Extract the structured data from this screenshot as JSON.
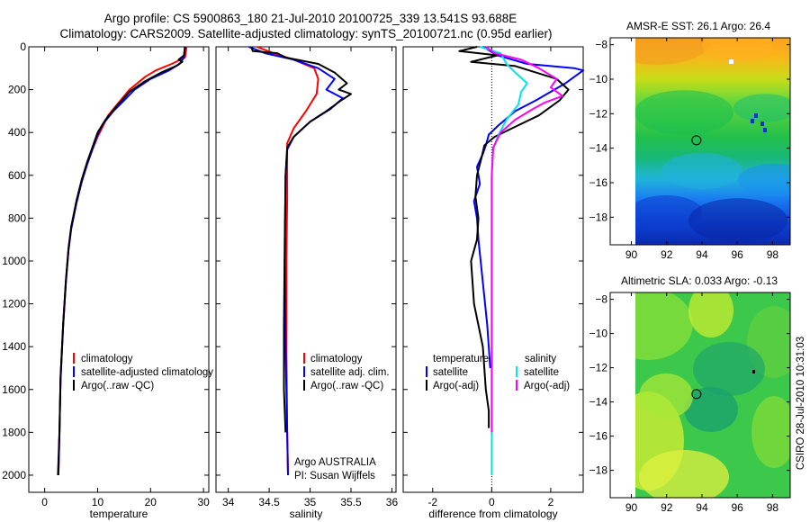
{
  "header": {
    "title_line1": "Argo profile: CS 5900863_180 21-Jul-2010 20100725_339 13.541S 93.688E",
    "title_line2": "Climatology: CARS2009. Satellite-adjusted climatology: synTS_20100721.nc (0.95d earlier)"
  },
  "credits": {
    "operator": "Argo AUSTRALIA",
    "pi": "PI: Susan Wijffels",
    "stamp": "CSIRO 28-Jul-2010 10:31:03"
  },
  "colors": {
    "climatology": "#ff0000",
    "satellite": "#0000ff",
    "argo": "#000000",
    "sal_satellite": "#00e5ee",
    "sal_argo": "#ff00ff"
  },
  "chart_data": [
    {
      "type": "line",
      "panel": "temperature",
      "xlabel": "temperature",
      "ylabel": "",
      "xlim": [
        -3,
        31
      ],
      "ylim": [
        0,
        2080
      ],
      "y_reversed": true,
      "xticks": [
        0,
        10,
        20,
        30
      ],
      "yticks": [
        0,
        200,
        400,
        600,
        800,
        1000,
        1200,
        1400,
        1600,
        1800,
        2000
      ],
      "legend": [
        "climatology",
        "satellite-adjusted climatology",
        "Argo(..raw -QC)"
      ],
      "series": [
        {
          "name": "climatology",
          "color": "#ff0000",
          "x": [
            26.8,
            26.5,
            24,
            21,
            19,
            16,
            14,
            12,
            11,
            10,
            9,
            8,
            7,
            6,
            5,
            4.5,
            4,
            3.5,
            3,
            2.8,
            2.6
          ],
          "y": [
            0,
            50,
            80,
            110,
            140,
            200,
            260,
            320,
            370,
            420,
            480,
            550,
            630,
            730,
            850,
            950,
            1100,
            1300,
            1550,
            1800,
            2000
          ]
        },
        {
          "name": "satellite-adjusted climatology",
          "color": "#0000ff",
          "x": [
            26.5,
            26.3,
            25.5,
            23.5,
            20,
            17,
            15,
            13,
            11,
            10,
            9,
            8,
            7,
            6,
            5,
            4.5,
            4,
            3.5,
            3,
            2.8,
            2.6
          ],
          "y": [
            0,
            50,
            80,
            110,
            150,
            200,
            250,
            300,
            360,
            410,
            480,
            550,
            630,
            730,
            850,
            950,
            1100,
            1300,
            1550,
            1800,
            2000
          ]
        },
        {
          "name": "Argo(..raw -QC)",
          "color": "#000000",
          "x": [
            26.5,
            26.3,
            25.3,
            26,
            24.8,
            22,
            19,
            16,
            13.5,
            11.5,
            10,
            9,
            8,
            7,
            6,
            5,
            4.5,
            4,
            3.5,
            3,
            2.8,
            2.5
          ],
          "y": [
            0,
            40,
            60,
            70,
            90,
            120,
            160,
            210,
            280,
            340,
            400,
            470,
            540,
            620,
            720,
            840,
            940,
            1090,
            1290,
            1540,
            1790,
            2000
          ]
        }
      ]
    },
    {
      "type": "line",
      "panel": "salinity",
      "xlabel": "salinity",
      "ylabel": "",
      "xlim": [
        33.85,
        36.05
      ],
      "ylim": [
        0,
        2080
      ],
      "y_reversed": true,
      "xticks": [
        34,
        34.5,
        35,
        35.5,
        36
      ],
      "legend": [
        "climatology",
        "satellite adj. clim.",
        "Argo(..raw -QC)"
      ],
      "series": [
        {
          "name": "climatology",
          "color": "#ff0000",
          "x": [
            34.35,
            34.55,
            34.8,
            35.05,
            35.1,
            35.08,
            34.95,
            34.8,
            34.72,
            34.72,
            34.72,
            34.71,
            34.71,
            34.72,
            34.73
          ],
          "y": [
            0,
            30,
            60,
            100,
            150,
            220,
            300,
            380,
            450,
            500,
            700,
            1000,
            1400,
            1800,
            2000
          ]
        },
        {
          "name": "satellite adj. clim.",
          "color": "#0000ff",
          "x": [
            34.25,
            34.45,
            34.8,
            35.1,
            35.3,
            35.2,
            35.4,
            35.25,
            35.0,
            34.8,
            34.72,
            34.7,
            34.69,
            34.7,
            34.72,
            34.73
          ],
          "y": [
            0,
            30,
            60,
            100,
            150,
            200,
            240,
            290,
            350,
            420,
            480,
            600,
            1000,
            1400,
            1800,
            2000
          ]
        },
        {
          "name": "Argo(..raw -QC)",
          "color": "#000000",
          "x": [
            34.28,
            34.3,
            34.6,
            34.7,
            35.1,
            35.3,
            35.45,
            35.35,
            35.5,
            35.38,
            35.2,
            35.0,
            34.8,
            34.72,
            34.7,
            34.69,
            34.68,
            34.68,
            34.7
          ],
          "y": [
            0,
            20,
            30,
            50,
            80,
            120,
            170,
            200,
            220,
            250,
            300,
            350,
            420,
            470,
            600,
            900,
            1300,
            1600,
            1800
          ]
        }
      ]
    },
    {
      "type": "line",
      "panel": "difference",
      "xlabel": "difference from climatology",
      "ylabel": "",
      "xlim": [
        -3,
        3.1
      ],
      "ylim": [
        0,
        2080
      ],
      "y_reversed": true,
      "xticks": [
        -2,
        0,
        2
      ],
      "legend_headers": [
        "temperature",
        "salinity"
      ],
      "legend": [
        "satellite",
        "Argo(-adj)",
        "satellite",
        "Argo(-adj)"
      ],
      "series": [
        {
          "name": "temperature satellite",
          "color": "#0000ff",
          "x": [
            -0.3,
            0.2,
            1.2,
            2.0,
            2.8,
            3.1,
            2.5,
            1.5,
            0.8,
            0.2,
            -0.1,
            -0.2,
            -0.3,
            -0.5,
            -0.4,
            -0.6,
            -0.5,
            -0.45,
            -0.3,
            -0.15,
            -0.05
          ],
          "y": [
            0,
            40,
            80,
            90,
            100,
            110,
            170,
            250,
            300,
            370,
            410,
            460,
            500,
            560,
            640,
            720,
            800,
            900,
            1100,
            1300,
            1500
          ]
        },
        {
          "name": "temperature Argo(-adj)",
          "color": "#000000",
          "x": [
            -0.5,
            -1.1,
            0.2,
            -0.7,
            0.8,
            1.5,
            2.2,
            2.6,
            2.3,
            1.6,
            0.7,
            0.1,
            -0.25,
            -0.35,
            -0.5,
            -0.55,
            -0.45,
            -0.5,
            -0.7,
            -0.6,
            -0.3,
            -0.2,
            -0.1,
            -0.1
          ],
          "y": [
            0,
            20,
            40,
            70,
            90,
            120,
            150,
            200,
            250,
            320,
            380,
            420,
            460,
            520,
            600,
            700,
            800,
            900,
            1000,
            1200,
            1400,
            1600,
            1700,
            1780
          ]
        },
        {
          "name": "salinity satellite",
          "color": "#00e5ee",
          "x": [
            -0.4,
            0.3,
            0.5,
            0.8,
            1.2,
            1.0,
            0.9,
            0.5,
            0.2,
            0.05,
            0.0,
            0.0
          ],
          "y": [
            0,
            30,
            80,
            120,
            170,
            210,
            270,
            340,
            420,
            480,
            600,
            2000
          ]
        },
        {
          "name": "salinity Argo(-adj)",
          "color": "#ff00ff",
          "x": [
            -0.2,
            0.1,
            1.0,
            1.6,
            2.2,
            2.0,
            2.4,
            1.8,
            1.4,
            0.8,
            0.3,
            0.05,
            0.0,
            0.0
          ],
          "y": [
            0,
            30,
            60,
            100,
            150,
            190,
            230,
            260,
            290,
            340,
            400,
            470,
            600,
            1800
          ]
        }
      ]
    },
    {
      "type": "heatmap",
      "panel": "sst_map",
      "title": "AMSR-E SST: 26.1 Argo: 26.4",
      "xlim": [
        88.8,
        99
      ],
      "ylim": [
        -19.6,
        -7.6
      ],
      "xticks": [
        90,
        92,
        94,
        96,
        98
      ],
      "yticks": [
        -8,
        -10,
        -12,
        -14,
        -16,
        -18
      ],
      "argo_position": {
        "lon": 93.688,
        "lat": -13.541
      }
    },
    {
      "type": "heatmap",
      "panel": "sla_map",
      "title": "Altimetric SLA: 0.033 Argo: -0.13",
      "xlim": [
        88.8,
        99
      ],
      "ylim": [
        -19.6,
        -7.6
      ],
      "xticks": [
        90,
        92,
        94,
        96,
        98
      ],
      "yticks": [
        -8,
        -10,
        -12,
        -14,
        -16,
        -18
      ],
      "argo_position": {
        "lon": 93.688,
        "lat": -13.541
      }
    }
  ]
}
